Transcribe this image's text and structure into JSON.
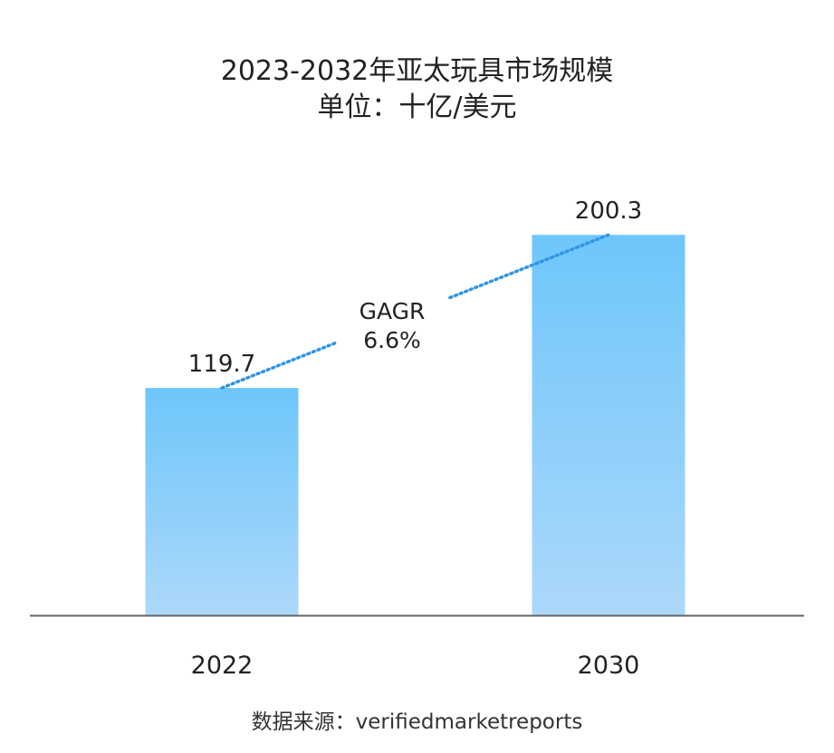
{
  "title": "2023-2032年亚太玩具市场规模",
  "subtitle": "单位：十亿/美元",
  "source": "数据来源：verifiedmarketreports",
  "colors": {
    "bar_top": "#6ec6fb",
    "bar_bottom": "#acd8fa",
    "axis": "#666666",
    "trend_line": "#2f95e6"
  },
  "chart_data": {
    "type": "bar",
    "categories": [
      "2022",
      "2030"
    ],
    "values": [
      119.7,
      200.3
    ],
    "data_labels": [
      "119.7",
      "200.3"
    ],
    "ylim": [
      0,
      240
    ],
    "grid": false,
    "annotation": {
      "line1": "GAGR",
      "line2": "6.6%"
    }
  }
}
